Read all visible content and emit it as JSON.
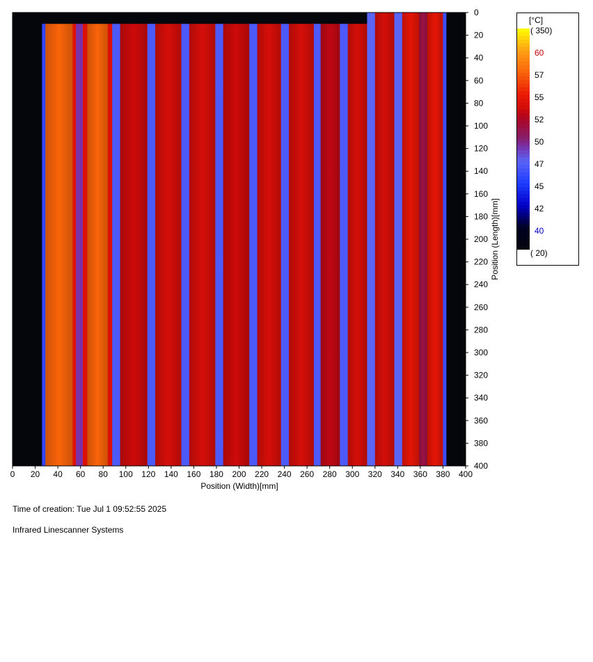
{
  "chart_data": {
    "type": "heatmap",
    "xlabel": "Position (Width)[mm]",
    "ylabel": "Position (Length)[mm]",
    "xlim": [
      0,
      400
    ],
    "ylim": [
      0,
      400
    ],
    "y_inverted": true,
    "x_ticks": [
      0,
      20,
      40,
      60,
      80,
      100,
      120,
      140,
      160,
      180,
      200,
      220,
      240,
      260,
      280,
      300,
      320,
      340,
      360,
      380,
      400
    ],
    "y_ticks": [
      0,
      20,
      40,
      60,
      80,
      100,
      120,
      140,
      160,
      180,
      200,
      220,
      240,
      260,
      280,
      300,
      320,
      340,
      360,
      380,
      400
    ],
    "colorbar": {
      "unit": "[°C]",
      "range_max": "( 350)",
      "range_min": "( 20)",
      "labels": [
        {
          "text": "60",
          "color": "#cc0000"
        },
        {
          "text": "57",
          "color": "#000000"
        },
        {
          "text": "55",
          "color": "#000000"
        },
        {
          "text": "52",
          "color": "#000000"
        },
        {
          "text": "50",
          "color": "#000000"
        },
        {
          "text": "47",
          "color": "#000000"
        },
        {
          "text": "45",
          "color": "#000000"
        },
        {
          "text": "42",
          "color": "#000000"
        },
        {
          "text": "40",
          "color": "#0000cc"
        }
      ]
    },
    "background_value": 20,
    "top_edge_y": 10,
    "top_edge_x_end": 313,
    "strips": [
      {
        "x0": 0,
        "x1": 26,
        "temp": 20
      },
      {
        "x0": 26,
        "x1": 29,
        "temp": 45.5
      },
      {
        "x0": 29,
        "x1": 53,
        "temp": 57
      },
      {
        "x0": 53,
        "x1": 56,
        "temp": 54
      },
      {
        "x0": 56,
        "x1": 62,
        "temp": 49
      },
      {
        "x0": 62,
        "x1": 66,
        "temp": 54
      },
      {
        "x0": 66,
        "x1": 84,
        "temp": 57
      },
      {
        "x0": 84,
        "x1": 88,
        "temp": 54
      },
      {
        "x0": 88,
        "x1": 95,
        "temp": 46.5
      },
      {
        "x0": 95,
        "x1": 119,
        "temp": 53
      },
      {
        "x0": 119,
        "x1": 126,
        "temp": 46.5
      },
      {
        "x0": 126,
        "x1": 149,
        "temp": 53.5
      },
      {
        "x0": 149,
        "x1": 156,
        "temp": 46.5
      },
      {
        "x0": 156,
        "x1": 179,
        "temp": 53.5
      },
      {
        "x0": 179,
        "x1": 186,
        "temp": 46.5
      },
      {
        "x0": 186,
        "x1": 209,
        "temp": 53
      },
      {
        "x0": 209,
        "x1": 216,
        "temp": 46.5
      },
      {
        "x0": 216,
        "x1": 237,
        "temp": 53.5
      },
      {
        "x0": 237,
        "x1": 244,
        "temp": 46.5
      },
      {
        "x0": 244,
        "x1": 266,
        "temp": 53.5
      },
      {
        "x0": 266,
        "x1": 272,
        "temp": 46.5
      },
      {
        "x0": 272,
        "x1": 289,
        "temp": 52.5
      },
      {
        "x0": 289,
        "x1": 296,
        "temp": 46.5
      },
      {
        "x0": 296,
        "x1": 313,
        "temp": 53.5
      },
      {
        "x0": 313,
        "x1": 320,
        "temp": 47
      },
      {
        "x0": 320,
        "x1": 337,
        "temp": 53.5
      },
      {
        "x0": 337,
        "x1": 344,
        "temp": 47
      },
      {
        "x0": 344,
        "x1": 359,
        "temp": 54.5
      },
      {
        "x0": 359,
        "x1": 366,
        "temp": 51
      },
      {
        "x0": 366,
        "x1": 380,
        "temp": 54.5
      },
      {
        "x0": 380,
        "x1": 383,
        "temp": 46
      },
      {
        "x0": 383,
        "x1": 400,
        "temp": 20
      }
    ]
  },
  "footer": {
    "creation_time": "Time of creation: Tue Jul  1 09:52:55 2025",
    "company": "Infrared Linescanner Systems"
  }
}
